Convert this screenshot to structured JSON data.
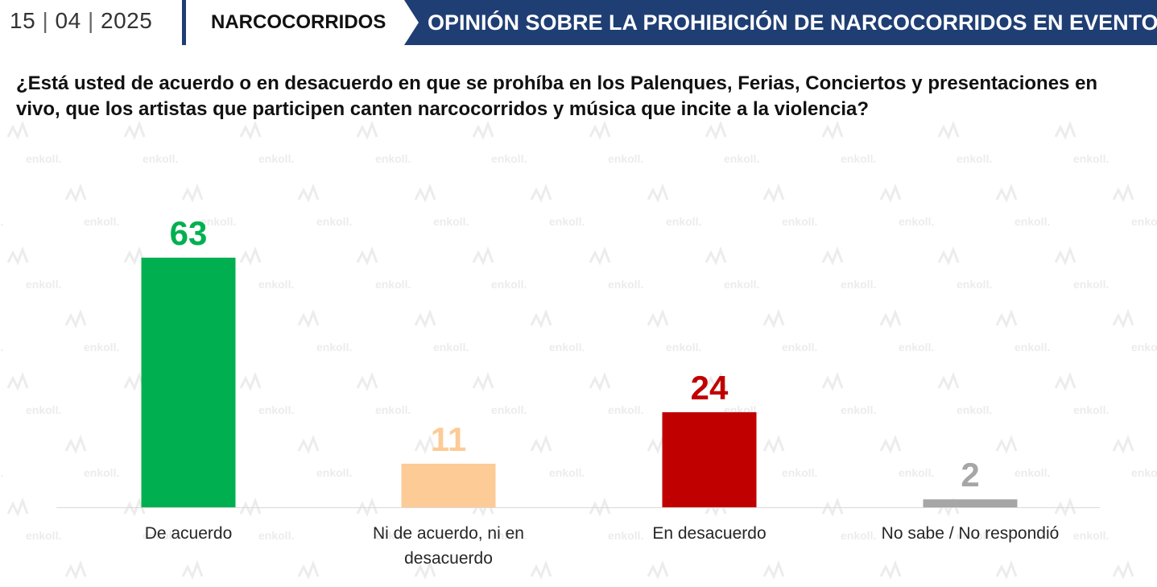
{
  "header": {
    "date": {
      "day": "15",
      "month": "04",
      "year": "2025"
    },
    "topic": "NARCOCORRIDOS",
    "title": "OPINIÓN SOBRE LA PROHIBICIÓN DE NARCOCORRIDOS EN EVENTOS"
  },
  "question": "¿Está usted de acuerdo o en desacuerdo en que se prohíba en los Palenques, Ferias, Conciertos y presentaciones en vivo, que los artistas que participen canten narcocorridos y música que incite a la violencia?",
  "watermark_text": "enkoll.",
  "colors": {
    "header_bg": "#1f3e74",
    "series": [
      "#00b050",
      "#fdcb96",
      "#c00000",
      "#a6a6a6"
    ]
  },
  "chart_data": {
    "type": "bar",
    "categories": [
      "De acuerdo",
      "Ni de acuerdo, ni en desacuerdo",
      "En desacuerdo",
      "No sabe / No respondió"
    ],
    "category_lines": [
      [
        "De acuerdo"
      ],
      [
        "Ni de acuerdo, ni en",
        "desacuerdo"
      ],
      [
        "En desacuerdo"
      ],
      [
        "No sabe / No respondió"
      ]
    ],
    "values": [
      63,
      11,
      24,
      2
    ],
    "labels": [
      "63",
      "11",
      "24",
      "2"
    ],
    "ylim": [
      0,
      63
    ],
    "grid": false,
    "legend": false
  }
}
